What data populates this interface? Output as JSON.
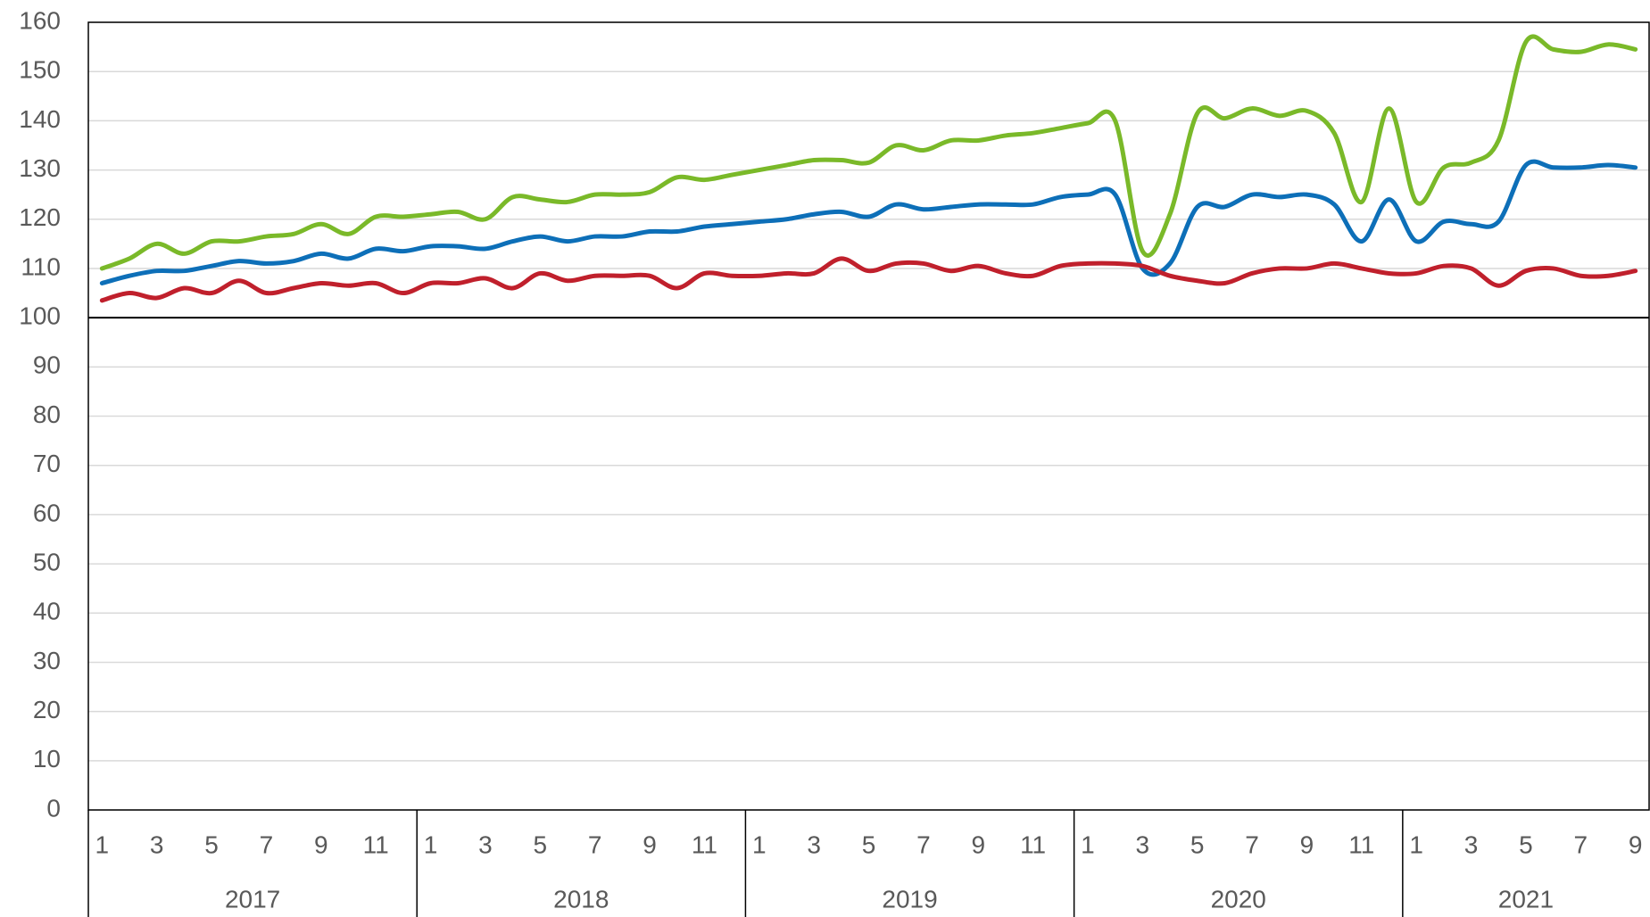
{
  "chart_data": {
    "type": "line",
    "categories": [
      "1",
      null,
      "3",
      null,
      "5",
      null,
      "7",
      null,
      "9",
      null,
      "11",
      null,
      "1",
      null,
      "3",
      null,
      "5",
      null,
      "7",
      null,
      "9",
      null,
      "11",
      null,
      "1",
      null,
      "3",
      null,
      "5",
      null,
      "7",
      null,
      "9",
      null,
      "11",
      null,
      "1",
      null,
      "3",
      null,
      "5",
      null,
      "7",
      null,
      "9",
      null,
      "11",
      null,
      "1",
      null,
      "3",
      null,
      "5",
      null,
      "7",
      null,
      "9"
    ],
    "years": [
      "2017",
      "2018",
      "2019",
      "2020",
      "2021"
    ],
    "ylim": [
      0,
      160
    ],
    "yticks": [
      0,
      10,
      20,
      30,
      40,
      50,
      60,
      70,
      80,
      90,
      100,
      110,
      120,
      130,
      140,
      150,
      160
    ],
    "grid": true,
    "reference_line": 100,
    "series": [
      {
        "color": "#7ab929",
        "values": [
          110,
          112,
          115,
          113,
          115.5,
          115.5,
          116.5,
          117,
          119,
          117,
          120.5,
          120.5,
          121,
          121.5,
          120,
          124.5,
          124,
          123.5,
          125,
          125,
          125.5,
          128.5,
          128,
          129,
          130,
          131,
          132,
          132,
          131.5,
          135,
          134,
          136,
          136,
          137,
          137.5,
          138.5,
          139.5,
          140,
          113.5,
          121,
          141.5,
          140.5,
          142.5,
          141,
          142,
          137.5,
          123.5,
          142.5,
          123.5,
          130.5,
          131.5,
          136,
          156,
          154.5,
          154,
          155.5,
          154.5
        ]
      },
      {
        "color": "#0d6fb8",
        "values": [
          107,
          108.5,
          109.5,
          109.5,
          110.5,
          111.5,
          111,
          111.5,
          113,
          112,
          114,
          113.5,
          114.5,
          114.5,
          114,
          115.5,
          116.5,
          115.5,
          116.5,
          116.5,
          117.5,
          117.5,
          118.5,
          119,
          119.5,
          120,
          121,
          121.5,
          120.5,
          123,
          122,
          122.5,
          123,
          123,
          123,
          124.5,
          125,
          125,
          110,
          111,
          122.5,
          122.5,
          125,
          124.5,
          125,
          123,
          115.5,
          124,
          115.5,
          119.5,
          119,
          119.5,
          131,
          130.5,
          130.5,
          131,
          130.5
        ]
      },
      {
        "color": "#c0202c",
        "values": [
          103.5,
          105,
          104,
          106,
          105,
          107.5,
          105,
          106,
          107,
          106.5,
          107,
          105,
          107,
          107,
          108,
          106,
          109,
          107.5,
          108.5,
          108.5,
          108.5,
          106,
          109,
          108.5,
          108.5,
          109,
          109,
          112,
          109.5,
          111,
          111,
          109.5,
          110.5,
          109,
          108.5,
          110.5,
          111,
          111,
          110.5,
          108.5,
          107.5,
          107,
          109,
          110,
          110,
          111,
          110,
          109,
          109,
          110.5,
          110,
          106.5,
          109.5,
          110,
          108.5,
          108.5,
          109.5
        ]
      }
    ]
  }
}
